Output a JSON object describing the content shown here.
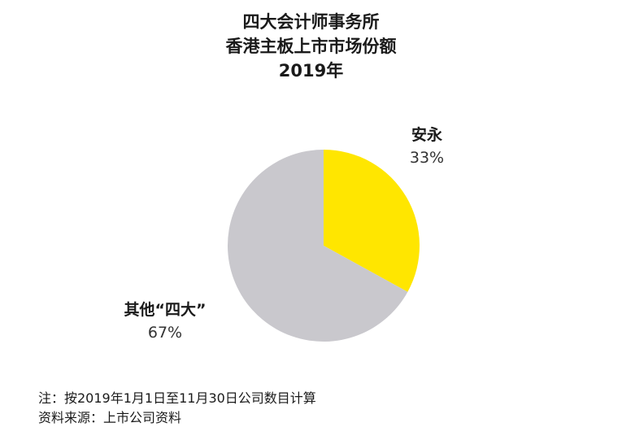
{
  "title": {
    "line1": "四大会计师事务所",
    "line2": "香港主板上市市场份额",
    "line3": "2019年"
  },
  "colors": {
    "series_primary": "#ffe600",
    "series_other": "#c9c8cd",
    "text": "#1a1a1a"
  },
  "chart_data": {
    "type": "pie",
    "title": "四大会计师事务所 香港主板上市市场份额 2019年",
    "slices": [
      {
        "label": "安永",
        "value": 33,
        "value_label": "33%",
        "color": "#ffe600"
      },
      {
        "label": "其他“四大”",
        "value": 67,
        "value_label": "67%",
        "color": "#c9c8cd"
      }
    ]
  },
  "notes": {
    "line1": "注：按2019年1月1日至11月30日公司数目计算",
    "line2": "资料来源：上市公司资料"
  }
}
